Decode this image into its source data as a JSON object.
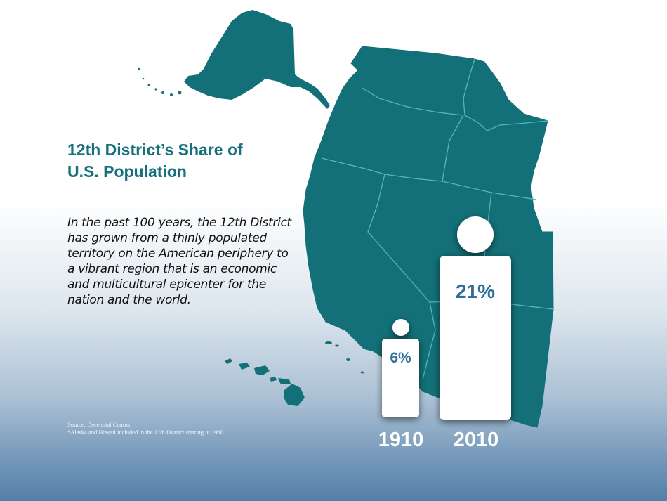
{
  "title_line1": "12th District’s Share of",
  "title_line2": "U.S. Population",
  "description": "In the past 100 years, the 12th District has grown from a thinly populated territory on the American periphery to a vibrant region that is an economic and multicultural epicenter for the nation and the world.",
  "source_line": "Source: Decennial Census",
  "footnote": "*Alaska and Hawaii included in the 12th District starting in 1960",
  "figures": [
    {
      "year": "1910",
      "share_label": "6%",
      "share_value": 6
    },
    {
      "year": "2010",
      "share_label": "21%",
      "share_value": 21
    }
  ],
  "colors": {
    "map_fill": "#137078",
    "map_border": "#4fb8be",
    "title": "#17707c",
    "percent_text": "#2d6f96",
    "figure_fill": "#ffffff"
  }
}
